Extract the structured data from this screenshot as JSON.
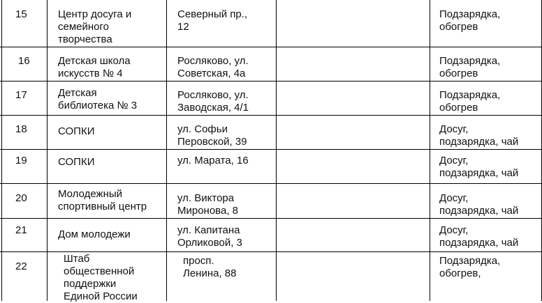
{
  "rows": [
    {
      "num": "15",
      "name": "Центр досуга и\nсемейного\nтворчества",
      "address": "Северный пр.,\n12",
      "services": "Подзарядка,\nобогрев"
    },
    {
      "num": "16",
      "name": "Детская школа\nискусств № 4",
      "address": "Росляково, ул.\nСоветская, 4а",
      "services": "Подзарядка,\nобогрев"
    },
    {
      "num": "17",
      "name": "Детская\nбиблиотека  № 3",
      "address": "Росляково, ул.\nЗаводская, 4/1",
      "services": "Подзарядка,\nобогрев"
    },
    {
      "num": "18",
      "name": "СОПКИ",
      "address": "ул. Софьи\nПеровской, 39",
      "services": "Досуг,\nподзарядка, чай"
    },
    {
      "num": "19",
      "name": "СОПКИ",
      "address": "ул. Марата, 16",
      "services": "Досуг,\nподзарядка, чай"
    },
    {
      "num": "20",
      "name": "Молодежный\nспортивный центр",
      "address": "ул. Виктора\nМиронова, 8",
      "services": "Досуг,\nподзарядка, чай"
    },
    {
      "num": "21",
      "name": "Дом молодежи",
      "address": "ул. Капитана\nОрликовой, 3",
      "services": "Досуг,\nподзарядка, чай"
    },
    {
      "num": "22",
      "name": "Штаб\nобщественной\nподдержки\nЕдиной России",
      "address": "просп.\nЛенина, 88",
      "services": "Подзарядка,\nобогрев,"
    }
  ]
}
